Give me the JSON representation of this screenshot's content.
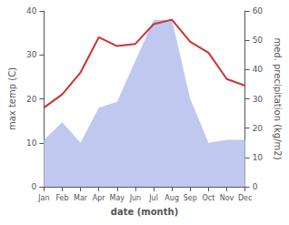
{
  "chart_data": {
    "type": "line",
    "categories": [
      "Jan",
      "Feb",
      "Mar",
      "Apr",
      "May",
      "Jun",
      "Jul",
      "Aug",
      "Sep",
      "Oct",
      "Nov",
      "Dec"
    ],
    "xlabel": "date (month)",
    "ylabel": "max temp (C)",
    "y2label": "med. precipitation (kg/m2)",
    "series": [
      {
        "type": "area",
        "axis": "y2",
        "color": "#c0c8f0",
        "values": [
          16,
          22,
          15,
          27,
          29,
          43,
          57,
          57,
          30,
          15,
          16,
          16
        ]
      },
      {
        "type": "line",
        "color": "#cc3333",
        "values": [
          18,
          21,
          26,
          34,
          32,
          32.5,
          37,
          38,
          33,
          30.5,
          24.5,
          23
        ]
      }
    ],
    "ylim": [
      0,
      40
    ],
    "yticks": [
      0,
      10,
      20,
      30,
      40
    ],
    "y2lim": [
      0,
      60
    ],
    "y2ticks": [
      0,
      10,
      20,
      30,
      40,
      50,
      60
    ],
    "grid": false
  }
}
